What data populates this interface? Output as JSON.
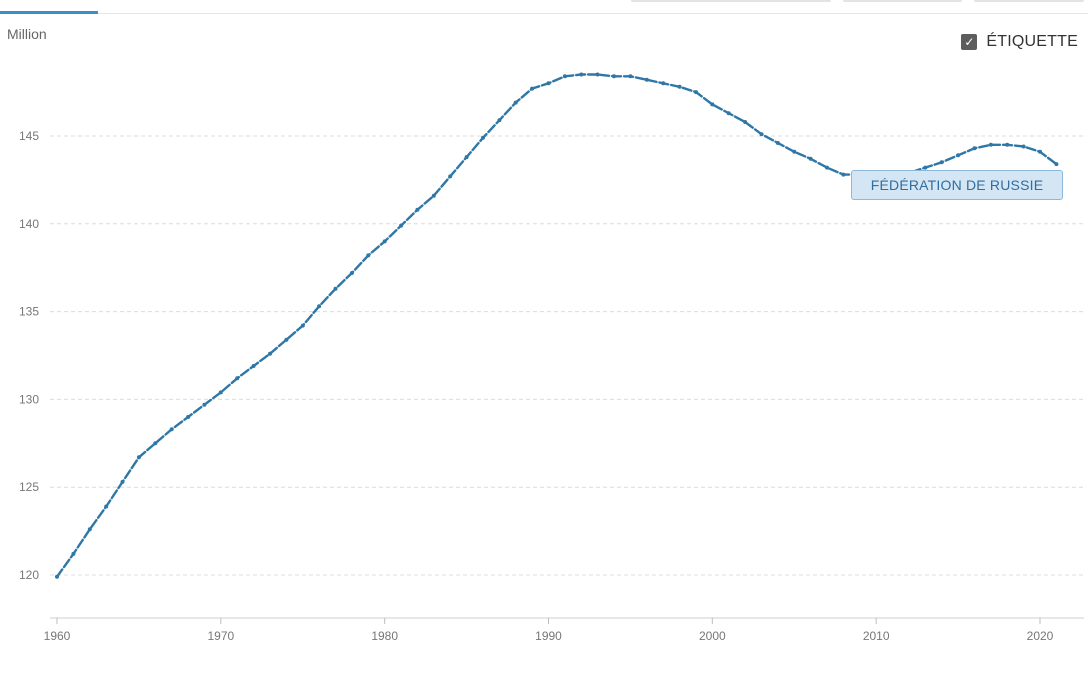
{
  "header": {
    "unit_label": "Million",
    "label_toggle": {
      "checked": true,
      "check_glyph": "✓",
      "text": "ÉTIQUETTE"
    }
  },
  "chart_data": {
    "type": "line",
    "title": "",
    "xlabel": "",
    "ylabel": "Million",
    "xlim": [
      1960,
      2021
    ],
    "ylim": [
      118,
      149
    ],
    "x_ticks": [
      1960,
      1970,
      1980,
      1990,
      2000,
      2010,
      2020
    ],
    "y_ticks": [
      120,
      125,
      130,
      135,
      140,
      145
    ],
    "grid": true,
    "series": [
      {
        "name": "FÉDÉRATION DE RUSSIE",
        "color": "#2e77a6",
        "x": [
          1960,
          1961,
          1962,
          1963,
          1964,
          1965,
          1966,
          1967,
          1968,
          1969,
          1970,
          1971,
          1972,
          1973,
          1974,
          1975,
          1976,
          1977,
          1978,
          1979,
          1980,
          1981,
          1982,
          1983,
          1984,
          1985,
          1986,
          1987,
          1988,
          1989,
          1990,
          1991,
          1992,
          1993,
          1994,
          1995,
          1996,
          1997,
          1998,
          1999,
          2000,
          2001,
          2002,
          2003,
          2004,
          2005,
          2006,
          2007,
          2008,
          2009,
          2010,
          2011,
          2012,
          2013,
          2014,
          2015,
          2016,
          2017,
          2018,
          2019,
          2020,
          2021
        ],
        "values": [
          119.9,
          121.2,
          122.6,
          123.9,
          125.3,
          126.7,
          127.5,
          128.3,
          129.0,
          129.7,
          130.4,
          131.2,
          131.9,
          132.6,
          133.4,
          134.2,
          135.3,
          136.3,
          137.2,
          138.2,
          139.0,
          139.9,
          140.8,
          141.6,
          142.7,
          143.8,
          144.9,
          145.9,
          146.9,
          147.7,
          148.0,
          148.4,
          148.5,
          148.5,
          148.4,
          148.4,
          148.2,
          148.0,
          147.8,
          147.5,
          146.8,
          146.3,
          145.8,
          145.1,
          144.6,
          144.1,
          143.7,
          143.2,
          142.8,
          142.8,
          142.8,
          142.9,
          142.9,
          143.2,
          143.5,
          143.9,
          144.3,
          144.5,
          144.5,
          144.4,
          144.1,
          143.4
        ]
      }
    ]
  }
}
